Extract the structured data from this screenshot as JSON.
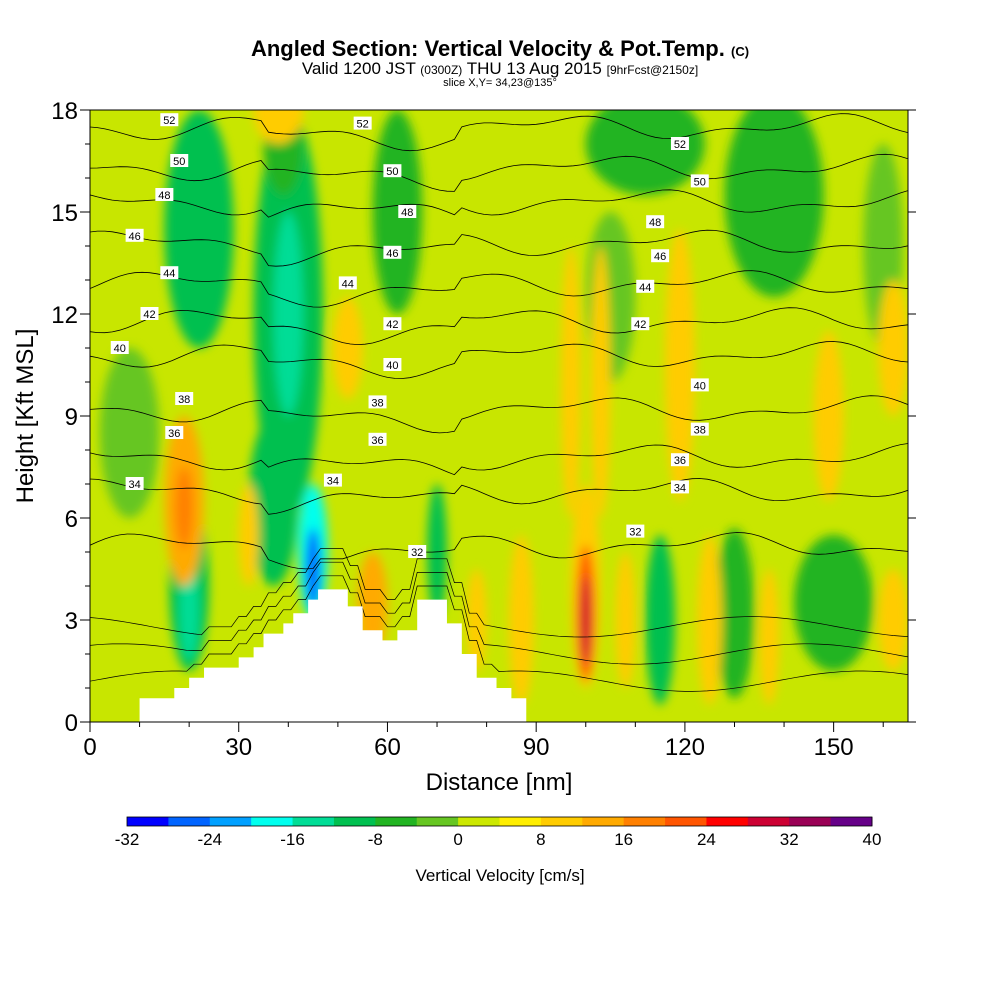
{
  "chart_data": {
    "type": "heatmap",
    "title": "Angled Section: Vertical Velocity & Pot.Temp.",
    "title_unit": "(C)",
    "subtitle_valid_a": "Valid 1200 JST",
    "subtitle_valid_b": "(0300Z)",
    "subtitle_valid_c": "THU 13 Aug 2015",
    "subtitle_valid_d": "[9hrFcst@2150z]",
    "subtitle_slice": "slice X,Y= 34,23@135°",
    "xlabel": "Distance [nm]",
    "ylabel": "Height [Kft MSL]",
    "xlim": [
      0,
      165
    ],
    "ylim": [
      0,
      18
    ],
    "x_ticks": [
      0,
      30,
      60,
      90,
      120,
      150
    ],
    "x_tick_labels": [
      "0",
      "30",
      "60",
      "90",
      "120",
      "150"
    ],
    "y_ticks": [
      0,
      3,
      6,
      9,
      12,
      15,
      18
    ],
    "y_tick_labels": [
      "0",
      "3",
      "6",
      "9",
      "12",
      "15",
      "18"
    ],
    "colorbar": {
      "label": "Vertical Velocity [cm/s]",
      "min": -32,
      "max": 40,
      "step": 4,
      "tick_values": [
        -32,
        -24,
        -16,
        -8,
        0,
        8,
        16,
        24,
        32,
        40
      ],
      "tick_labels": [
        "-32",
        "-24",
        "-16",
        "-8",
        "0",
        "8",
        "16",
        "24",
        "32",
        "40"
      ],
      "colors": [
        "#0000ff",
        "#0064ff",
        "#00a0ff",
        "#00ffee",
        "#00dd96",
        "#00c050",
        "#22b422",
        "#66c622",
        "#cce800",
        "#ffee00",
        "#ffcc00",
        "#ffaa00",
        "#ff8000",
        "#ff5500",
        "#ff0000",
        "#cc0033",
        "#990055",
        "#660088"
      ]
    },
    "background_color": "#c8e600",
    "terrain": [
      [
        10,
        0.3
      ],
      [
        10,
        0.7
      ],
      [
        17,
        0.7
      ],
      [
        17,
        1.0
      ],
      [
        20,
        1.0
      ],
      [
        20,
        1.3
      ],
      [
        23,
        1.3
      ],
      [
        23,
        1.6
      ],
      [
        30,
        1.6
      ],
      [
        30,
        1.9
      ],
      [
        33,
        1.9
      ],
      [
        33,
        2.2
      ],
      [
        35,
        2.2
      ],
      [
        35,
        2.6
      ],
      [
        39,
        2.6
      ],
      [
        39,
        2.9
      ],
      [
        41,
        2.9
      ],
      [
        41,
        3.2
      ],
      [
        44,
        3.2
      ],
      [
        44,
        3.6
      ],
      [
        46,
        3.6
      ],
      [
        46,
        3.9
      ],
      [
        52,
        3.9
      ],
      [
        52,
        3.4
      ],
      [
        55,
        3.4
      ],
      [
        55,
        2.7
      ],
      [
        59,
        2.7
      ],
      [
        59,
        2.4
      ],
      [
        62,
        2.4
      ],
      [
        62,
        2.7
      ],
      [
        66,
        2.7
      ],
      [
        66,
        3.6
      ],
      [
        72,
        3.6
      ],
      [
        72,
        2.9
      ],
      [
        75,
        2.9
      ],
      [
        75,
        2.0
      ],
      [
        78,
        2.0
      ],
      [
        78,
        1.3
      ],
      [
        82,
        1.3
      ],
      [
        82,
        1.0
      ],
      [
        85,
        1.0
      ],
      [
        85,
        0.7
      ],
      [
        88,
        0.7
      ],
      [
        88,
        0.3
      ]
    ],
    "velocity_regions": [
      {
        "value": -10,
        "x": 22,
        "y": 14.5,
        "rx": 7,
        "ry": 3.5
      },
      {
        "value": -8,
        "x": 62,
        "y": 15,
        "rx": 5,
        "ry": 3
      },
      {
        "value": -8,
        "x": 112,
        "y": 17,
        "rx": 12,
        "ry": 1.5
      },
      {
        "value": -6,
        "x": 138,
        "y": 15.5,
        "rx": 10,
        "ry": 3
      },
      {
        "value": -10,
        "x": 40,
        "y": 12,
        "rx": 7,
        "ry": 6
      },
      {
        "value": -16,
        "x": 40,
        "y": 12,
        "rx": 3,
        "ry": 3
      },
      {
        "value": -8,
        "x": 39,
        "y": 17,
        "rx": 4,
        "ry": 1.5
      },
      {
        "value": -10,
        "x": 37,
        "y": 6.5,
        "rx": 5,
        "ry": 2.5
      },
      {
        "value": -20,
        "x": 45,
        "y": 5,
        "rx": 3,
        "ry": 2
      },
      {
        "value": -28,
        "x": 45,
        "y": 4.5,
        "rx": 1.5,
        "ry": 1.2
      },
      {
        "value": -12,
        "x": 70,
        "y": 5,
        "rx": 2,
        "ry": 2
      },
      {
        "value": -10,
        "x": 20,
        "y": 4,
        "rx": 4,
        "ry": 2.5
      },
      {
        "value": -14,
        "x": 20,
        "y": 3.3,
        "rx": 2,
        "ry": 1.5
      },
      {
        "value": -12,
        "x": 115,
        "y": 3,
        "rx": 3,
        "ry": 2.5
      },
      {
        "value": -8,
        "x": 130,
        "y": 3.2,
        "rx": 4,
        "ry": 2.5
      },
      {
        "value": -8,
        "x": 150,
        "y": 3.5,
        "rx": 8,
        "ry": 2
      },
      {
        "value": -4,
        "x": 105,
        "y": 12.5,
        "rx": 5,
        "ry": 2.5
      },
      {
        "value": -4,
        "x": 8,
        "y": 8.5,
        "rx": 6,
        "ry": 2.5
      },
      {
        "value": -4,
        "x": 160,
        "y": 14,
        "rx": 4,
        "ry": 3
      },
      {
        "value": 8,
        "x": 52,
        "y": 11,
        "rx": 3,
        "ry": 1.5
      },
      {
        "value": 8,
        "x": 38,
        "y": 18,
        "rx": 5,
        "ry": 1
      },
      {
        "value": 8,
        "x": 97,
        "y": 10,
        "rx": 2,
        "ry": 4
      },
      {
        "value": 8,
        "x": 103,
        "y": 10,
        "rx": 2,
        "ry": 4
      },
      {
        "value": 10,
        "x": 119,
        "y": 10.5,
        "rx": 3,
        "ry": 4
      },
      {
        "value": 8,
        "x": 149,
        "y": 9,
        "rx": 3,
        "ry": 2.5
      },
      {
        "value": 8,
        "x": 162,
        "y": 11,
        "rx": 3,
        "ry": 2
      },
      {
        "value": 12,
        "x": 19,
        "y": 6.5,
        "rx": 4,
        "ry": 2.5
      },
      {
        "value": 16,
        "x": 19,
        "y": 6.3,
        "rx": 1.8,
        "ry": 1.2
      },
      {
        "value": 8,
        "x": 32,
        "y": 5.5,
        "rx": 2,
        "ry": 1.5
      },
      {
        "value": 12,
        "x": 57,
        "y": 3.5,
        "rx": 3,
        "ry": 1.5
      },
      {
        "value": 8,
        "x": 78,
        "y": 3,
        "rx": 2,
        "ry": 1.5
      },
      {
        "value": 10,
        "x": 87,
        "y": 3,
        "rx": 2.5,
        "ry": 2.5
      },
      {
        "value": 10,
        "x": 100,
        "y": 4,
        "rx": 3,
        "ry": 3
      },
      {
        "value": 20,
        "x": 100,
        "y": 3.2,
        "rx": 1.8,
        "ry": 2
      },
      {
        "value": 28,
        "x": 100,
        "y": 3,
        "rx": 1,
        "ry": 1.3
      },
      {
        "value": 10,
        "x": 108,
        "y": 3,
        "rx": 2,
        "ry": 2
      },
      {
        "value": 10,
        "x": 125,
        "y": 3,
        "rx": 2.5,
        "ry": 2.5
      },
      {
        "value": 8,
        "x": 137,
        "y": 2.5,
        "rx": 2,
        "ry": 2
      },
      {
        "value": 8,
        "x": 162,
        "y": 3,
        "rx": 3,
        "ry": 1.5
      }
    ],
    "theta_contours": [
      {
        "label": "32",
        "y": 5.2,
        "label_x": 110,
        "label_y": 5.6
      },
      {
        "label": "34",
        "y": 6.8,
        "label_x": 9,
        "label_y": 7.0
      },
      {
        "label": "36",
        "y": 7.8,
        "label_x": 17,
        "label_y": 8.5
      },
      {
        "label": "38",
        "y": 9.2,
        "label_x": 19,
        "label_y": 9.5
      },
      {
        "label": "40",
        "y": 10.8,
        "label_x": 6,
        "label_y": 11.0
      },
      {
        "label": "42",
        "y": 11.8,
        "label_x": 12,
        "label_y": 12.0
      },
      {
        "label": "44",
        "y": 12.9,
        "label_x": 16,
        "label_y": 13.2
      },
      {
        "label": "46",
        "y": 14.1,
        "label_x": 9,
        "label_y": 14.3
      },
      {
        "label": "48",
        "y": 15.3,
        "label_x": 15,
        "label_y": 15.5
      },
      {
        "label": "50",
        "y": 16.3,
        "label_x": 18,
        "label_y": 16.5
      },
      {
        "label": "52",
        "y": 17.5,
        "label_x": 16,
        "label_y": 17.7
      }
    ],
    "contour_labels": [
      {
        "label": "52",
        "x": 55,
        "y": 17.6
      },
      {
        "label": "50",
        "x": 61,
        "y": 16.2
      },
      {
        "label": "48",
        "x": 64,
        "y": 15.0
      },
      {
        "label": "46",
        "x": 61,
        "y": 13.8
      },
      {
        "label": "44",
        "x": 52,
        "y": 12.9
      },
      {
        "label": "42",
        "x": 61,
        "y": 11.7
      },
      {
        "label": "40",
        "x": 61,
        "y": 10.5
      },
      {
        "label": "38",
        "x": 58,
        "y": 9.4
      },
      {
        "label": "36",
        "x": 58,
        "y": 8.3
      },
      {
        "label": "34",
        "x": 49,
        "y": 7.1
      },
      {
        "label": "32",
        "x": 66,
        "y": 5.0
      },
      {
        "label": "52",
        "x": 119,
        "y": 17.0
      },
      {
        "label": "50",
        "x": 123,
        "y": 15.9
      },
      {
        "label": "48",
        "x": 114,
        "y": 14.7
      },
      {
        "label": "46",
        "x": 115,
        "y": 13.7
      },
      {
        "label": "44",
        "x": 112,
        "y": 12.8
      },
      {
        "label": "42",
        "x": 111,
        "y": 11.7
      },
      {
        "label": "40",
        "x": 123,
        "y": 9.9
      },
      {
        "label": "38",
        "x": 123,
        "y": 8.6
      },
      {
        "label": "36",
        "x": 119,
        "y": 7.7
      },
      {
        "label": "34",
        "x": 119,
        "y": 6.9
      }
    ]
  }
}
